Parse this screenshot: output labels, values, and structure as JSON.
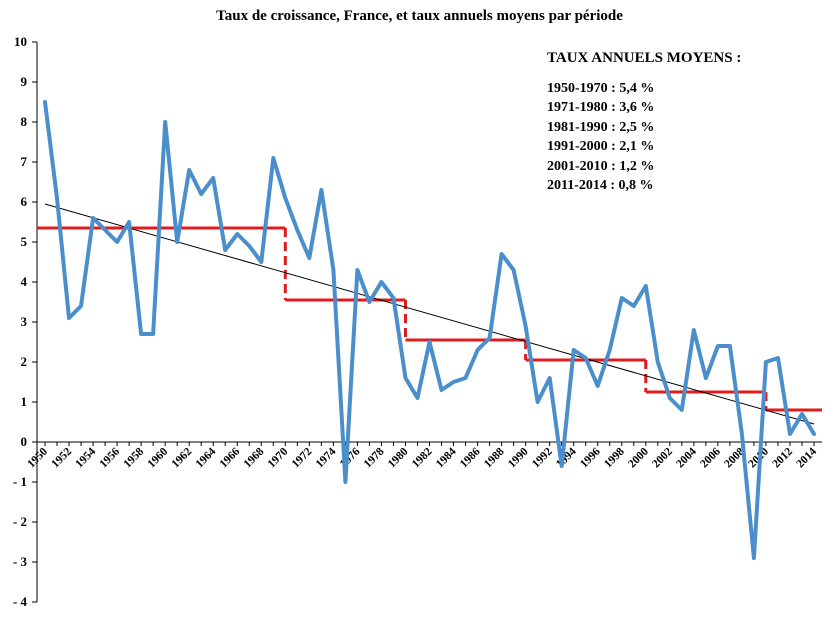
{
  "chart_data": {
    "type": "line",
    "title": "Taux de croissance, France, et taux annuels moyens par période",
    "xlabel": "",
    "ylabel": "",
    "ylim": [
      -4,
      10
    ],
    "yticks": [
      10,
      9,
      8,
      7,
      6,
      5,
      4,
      3,
      2,
      1,
      0,
      -1,
      -2,
      -3,
      -4
    ],
    "ytick_labels": [
      "10",
      "9",
      "8",
      "7",
      "6",
      "5",
      "4",
      "3",
      "2",
      "1",
      "0",
      "- 1",
      "- 2",
      "- 3",
      "- 4"
    ],
    "xlim": [
      1950,
      2014
    ],
    "x_tick_labels": [
      "1950",
      "1952",
      "1954",
      "1956",
      "1958",
      "1960",
      "1962",
      "1964",
      "1966",
      "1968",
      "1970",
      "1972",
      "1974",
      "1976",
      "1978",
      "1980",
      "1982",
      "1984",
      "1986",
      "1988",
      "1990",
      "1992",
      "1994",
      "1996",
      "1998",
      "2000",
      "2002",
      "2004",
      "2006",
      "2008",
      "2010",
      "2012",
      "2014"
    ],
    "grid": false,
    "colors": {
      "series": "#4a8fcc",
      "averages": "#e01b1b",
      "trend": "#000000"
    },
    "series": [
      {
        "values": [
          {
            "x": 1950,
            "y": 8.5
          },
          {
            "x": 1951,
            "y": 6.1
          },
          {
            "x": 1952,
            "y": 3.1
          },
          {
            "x": 1953,
            "y": 3.4
          },
          {
            "x": 1954,
            "y": 5.6
          },
          {
            "x": 1955,
            "y": 5.3
          },
          {
            "x": 1956,
            "y": 5.0
          },
          {
            "x": 1957,
            "y": 5.5
          },
          {
            "x": 1958,
            "y": 2.7
          },
          {
            "x": 1959,
            "y": 2.7
          },
          {
            "x": 1960,
            "y": 8.0
          },
          {
            "x": 1961,
            "y": 5.0
          },
          {
            "x": 1962,
            "y": 6.8
          },
          {
            "x": 1963,
            "y": 6.2
          },
          {
            "x": 1964,
            "y": 6.6
          },
          {
            "x": 1965,
            "y": 4.8
          },
          {
            "x": 1966,
            "y": 5.2
          },
          {
            "x": 1967,
            "y": 4.9
          },
          {
            "x": 1968,
            "y": 4.5
          },
          {
            "x": 1969,
            "y": 7.1
          },
          {
            "x": 1970,
            "y": 6.1
          },
          {
            "x": 1971,
            "y": 5.3
          },
          {
            "x": 1972,
            "y": 4.6
          },
          {
            "x": 1973,
            "y": 6.3
          },
          {
            "x": 1974,
            "y": 4.3
          },
          {
            "x": 1975,
            "y": -1.0
          },
          {
            "x": 1976,
            "y": 4.3
          },
          {
            "x": 1977,
            "y": 3.5
          },
          {
            "x": 1978,
            "y": 4.0
          },
          {
            "x": 1979,
            "y": 3.6
          },
          {
            "x": 1980,
            "y": 1.6
          },
          {
            "x": 1981,
            "y": 1.1
          },
          {
            "x": 1982,
            "y": 2.5
          },
          {
            "x": 1983,
            "y": 1.3
          },
          {
            "x": 1984,
            "y": 1.5
          },
          {
            "x": 1985,
            "y": 1.6
          },
          {
            "x": 1986,
            "y": 2.3
          },
          {
            "x": 1987,
            "y": 2.6
          },
          {
            "x": 1988,
            "y": 4.7
          },
          {
            "x": 1989,
            "y": 4.3
          },
          {
            "x": 1990,
            "y": 2.9
          },
          {
            "x": 1991,
            "y": 1.0
          },
          {
            "x": 1992,
            "y": 1.6
          },
          {
            "x": 1993,
            "y": -0.6
          },
          {
            "x": 1994,
            "y": 2.3
          },
          {
            "x": 1995,
            "y": 2.1
          },
          {
            "x": 1996,
            "y": 1.4
          },
          {
            "x": 1997,
            "y": 2.3
          },
          {
            "x": 1998,
            "y": 3.6
          },
          {
            "x": 1999,
            "y": 3.4
          },
          {
            "x": 2000,
            "y": 3.9
          },
          {
            "x": 2001,
            "y": 2.0
          },
          {
            "x": 2002,
            "y": 1.1
          },
          {
            "x": 2003,
            "y": 0.8
          },
          {
            "x": 2004,
            "y": 2.8
          },
          {
            "x": 2005,
            "y": 1.6
          },
          {
            "x": 2006,
            "y": 2.4
          },
          {
            "x": 2007,
            "y": 2.4
          },
          {
            "x": 2008,
            "y": 0.2
          },
          {
            "x": 2009,
            "y": -2.9
          },
          {
            "x": 2010,
            "y": 2.0
          },
          {
            "x": 2011,
            "y": 2.1
          },
          {
            "x": 2012,
            "y": 0.2
          },
          {
            "x": 2013,
            "y": 0.7
          },
          {
            "x": 2014,
            "y": 0.2
          }
        ]
      }
    ],
    "period_averages": [
      {
        "x_start": 1950,
        "x_end": 1970,
        "y": 5.35
      },
      {
        "x_start": 1970,
        "x_end": 1980,
        "y": 3.55
      },
      {
        "x_start": 1980,
        "x_end": 1990,
        "y": 2.55
      },
      {
        "x_start": 1990,
        "x_end": 2000,
        "y": 2.05
      },
      {
        "x_start": 2000,
        "x_end": 2010,
        "y": 1.25
      },
      {
        "x_start": 2010,
        "x_end": 2014,
        "y": 0.8
      }
    ],
    "trend_line": {
      "x_start": 1950,
      "y_start": 5.95,
      "x_end": 2014,
      "y_end": 0.45
    },
    "legend": {
      "heading": "TAUX ANNUELS MOYENS :",
      "entries": [
        "1950-1970 : 5,4 %",
        "1971-1980 : 3,6 %",
        "1981-1990 : 2,5 %",
        "1991-2000 : 2,1 %",
        "2001-2010 : 1,2 %",
        "2011-2014 : 0,8 %"
      ]
    }
  }
}
